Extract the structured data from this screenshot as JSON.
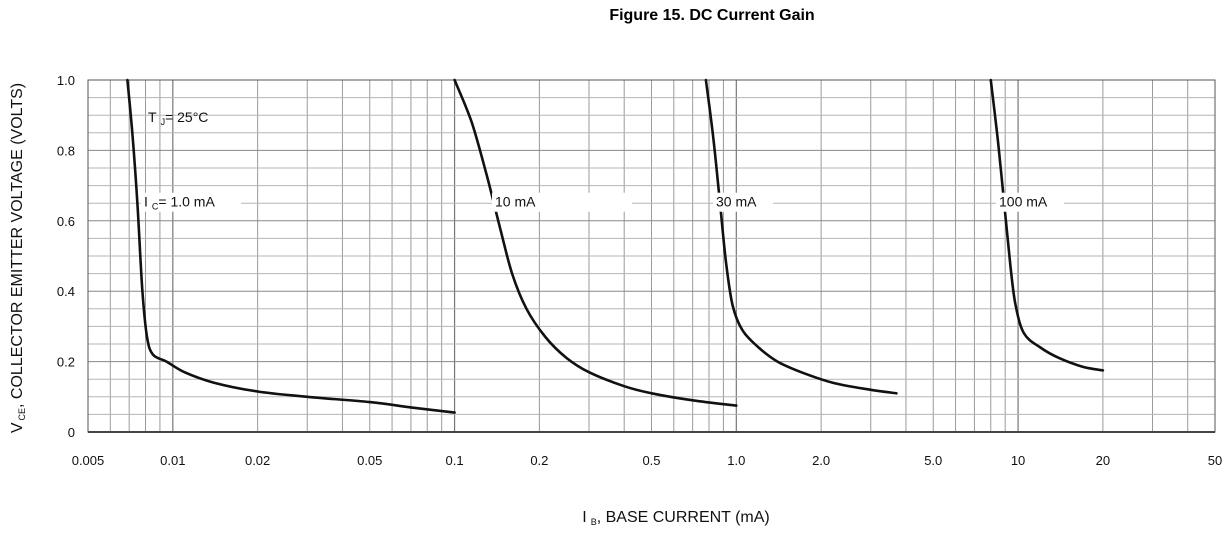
{
  "chart_data": {
    "type": "line",
    "title": "Figure 15. DC Current Gain",
    "xlabel": {
      "main": "I",
      "sub": "B",
      "rest": ", BASE CURRENT (mA)"
    },
    "ylabel": {
      "main": "V",
      "sub": "CE",
      "rest": ", COLLECTOR EMITTER VOLTAGE (VOLTS)"
    },
    "x_scale": "log",
    "xlim": [
      0.005,
      50
    ],
    "ylim": [
      0,
      1.0
    ],
    "grid": true,
    "x_ticks": [
      {
        "value": 0.005,
        "label": "0.005"
      },
      {
        "value": 0.01,
        "label": "0.01"
      },
      {
        "value": 0.02,
        "label": "0.02"
      },
      {
        "value": 0.05,
        "label": "0.05"
      },
      {
        "value": 0.1,
        "label": "0.1"
      },
      {
        "value": 0.2,
        "label": "0.2"
      },
      {
        "value": 0.5,
        "label": "0.5"
      },
      {
        "value": 1,
        "label": "1.0"
      },
      {
        "value": 2,
        "label": "2.0"
      },
      {
        "value": 5,
        "label": "5.0"
      },
      {
        "value": 10,
        "label": "10"
      },
      {
        "value": 20,
        "label": "20"
      },
      {
        "value": 50,
        "label": "50"
      }
    ],
    "y_ticks": [
      {
        "value": 0,
        "label": "0"
      },
      {
        "value": 0.2,
        "label": "0.2"
      },
      {
        "value": 0.4,
        "label": "0.4"
      },
      {
        "value": 0.6,
        "label": "0.6"
      },
      {
        "value": 0.8,
        "label": "0.8"
      },
      {
        "value": 1.0,
        "label": "1.0"
      }
    ],
    "annotations": {
      "temperature": {
        "main": "T",
        "sub": "J",
        "rest": "= 25°C"
      },
      "ic_prefix": {
        "main": "I",
        "sub": "C",
        "rest": "= 1.0 mA"
      }
    },
    "series": [
      {
        "label_text": "",
        "x": [
          0.0069,
          0.0072,
          0.0075,
          0.0078,
          0.0081,
          0.0085,
          0.0095,
          0.011,
          0.014,
          0.02,
          0.03,
          0.05,
          0.07,
          0.1
        ],
        "y": [
          1.0,
          0.84,
          0.64,
          0.4,
          0.27,
          0.22,
          0.2,
          0.17,
          0.14,
          0.115,
          0.1,
          0.085,
          0.07,
          0.055
        ]
      },
      {
        "label_text": "10 mA",
        "x": [
          0.1,
          0.115,
          0.13,
          0.145,
          0.16,
          0.18,
          0.21,
          0.25,
          0.3,
          0.4,
          0.5,
          0.7,
          1.0
        ],
        "y": [
          1.0,
          0.88,
          0.73,
          0.58,
          0.45,
          0.35,
          0.27,
          0.21,
          0.17,
          0.13,
          0.11,
          0.09,
          0.075
        ]
      },
      {
        "label_text": "30 mA",
        "x": [
          0.78,
          0.83,
          0.88,
          0.92,
          0.97,
          1.05,
          1.2,
          1.4,
          1.7,
          2.2,
          3.0,
          3.7
        ],
        "y": [
          1.0,
          0.83,
          0.63,
          0.48,
          0.36,
          0.29,
          0.24,
          0.2,
          0.17,
          0.14,
          0.12,
          0.11
        ]
      },
      {
        "label_text": "100 mA",
        "x": [
          8.0,
          8.5,
          9.0,
          9.4,
          9.8,
          10.5,
          12.0,
          14.0,
          17.0,
          20.0
        ],
        "y": [
          1.0,
          0.82,
          0.62,
          0.47,
          0.36,
          0.28,
          0.24,
          0.21,
          0.185,
          0.175
        ]
      }
    ]
  }
}
